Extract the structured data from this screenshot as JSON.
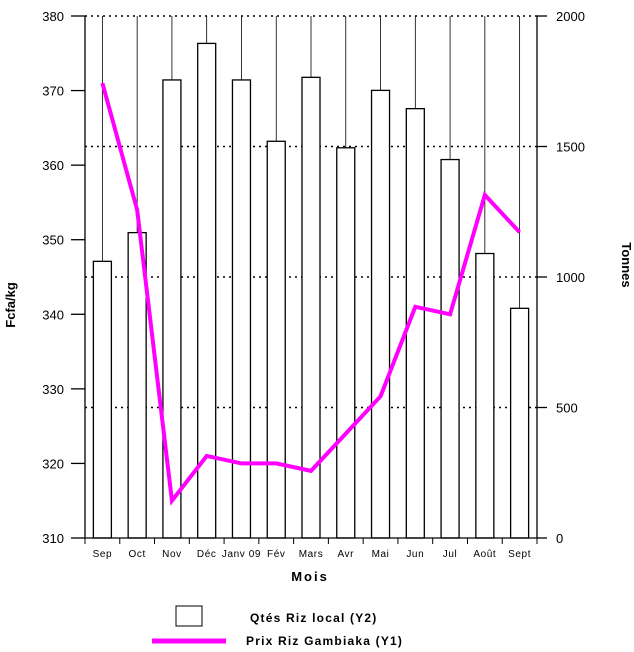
{
  "chart_data": {
    "type": "bar+line",
    "categories": [
      "Sep",
      "Oct",
      "Nov",
      "Déc",
      "Janv 09",
      "Fév",
      "Mars",
      "Avr",
      "Mai",
      "Jun",
      "Jul",
      "Août",
      "Sept"
    ],
    "series": [
      {
        "name": "Qtés Riz local (Y2)",
        "type": "bar",
        "axis": "y2",
        "values": [
          1060,
          1170,
          1755,
          1895,
          1755,
          1520,
          1765,
          1495,
          1715,
          1645,
          1450,
          1090,
          880
        ]
      },
      {
        "name": "Prix Riz Gambiaka (Y1)",
        "type": "line",
        "axis": "y1",
        "color": "#ff00ff",
        "values": [
          371,
          354,
          315,
          321,
          320,
          320,
          319,
          324,
          329,
          341,
          340,
          356,
          351
        ]
      }
    ],
    "xlabel": "Mois",
    "ylabel": "Fcfa/kg",
    "y2label": "Tonnes",
    "ylim": [
      310,
      380
    ],
    "yticks": [
      310,
      320,
      330,
      340,
      350,
      360,
      370,
      380
    ],
    "y2lim": [
      0,
      2000
    ],
    "y2ticks": [
      0,
      500,
      1000,
      1500,
      2000
    ],
    "grid": "vertical solid lines at categories, horizontal dotted lines at Y2 ticks",
    "legend_position": "bottom-center"
  }
}
